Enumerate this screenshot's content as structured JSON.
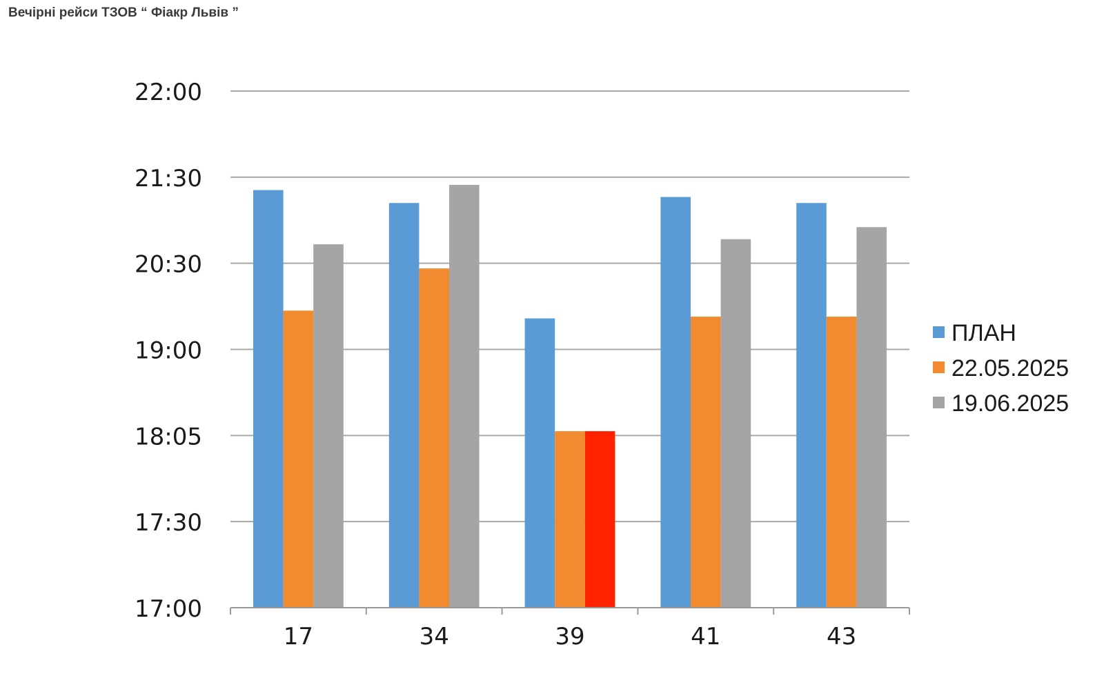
{
  "page": {
    "title": "Вечірні рейси ТЗОВ “ Фіакр Львів ”"
  },
  "chart_data": {
    "type": "bar",
    "categories": [
      "17",
      "34",
      "39",
      "41",
      "43"
    ],
    "y_tick_labels": [
      "17:00",
      "17:30",
      "18:05",
      "19:00",
      "20:30",
      "21:30",
      "22:00"
    ],
    "y_tick_levels": [
      0,
      1,
      2,
      3,
      4,
      5,
      6
    ],
    "ylim": [
      0,
      6
    ],
    "grid": true,
    "legend_position": "right",
    "series": [
      {
        "name": "ПЛАН",
        "color": "#5b9bd5",
        "values": [
          4.85,
          4.7,
          3.36,
          4.77,
          4.7
        ]
      },
      {
        "name": "22.05.2025",
        "color": "#f28a30",
        "values": [
          3.45,
          3.94,
          2.05,
          3.38,
          3.38
        ]
      },
      {
        "name": "19.06.2025",
        "color": "#a5a5a5",
        "values": [
          4.22,
          4.91,
          2.05,
          4.28,
          4.42
        ]
      }
    ],
    "highlight": {
      "category": "39",
      "series": "19.06.2025",
      "color": "#ff2200"
    }
  }
}
